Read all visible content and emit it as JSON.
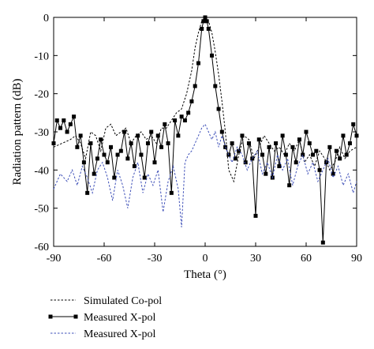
{
  "chart_data": {
    "type": "line",
    "title": "",
    "xlabel": "Theta (°)",
    "ylabel": "Radiation pattern (dB)",
    "xlim": [
      -90,
      90
    ],
    "ylim": [
      -60,
      0
    ],
    "xticks": [
      -90,
      -60,
      -30,
      0,
      30,
      60,
      90
    ],
    "yticks": [
      -60,
      -50,
      -40,
      -30,
      -20,
      -10,
      0
    ],
    "xtick_labels": [
      "-90",
      "-60",
      "-30",
      "0",
      "30",
      "60",
      "90"
    ],
    "ytick_labels": [
      "-60",
      "-50",
      "-40",
      "-30",
      "-20",
      "-10",
      "0"
    ],
    "grid": false,
    "legend_position": "bottom-left, below plot",
    "series": [
      {
        "name": "Simulated Co-pol",
        "style": "dotted",
        "color": "#000000",
        "x": [
          -90,
          -85,
          -80,
          -77,
          -74,
          -71,
          -68,
          -65,
          -62,
          -59,
          -56,
          -53,
          -50,
          -47,
          -44,
          -41,
          -38,
          -35,
          -32,
          -29,
          -26,
          -23,
          -20,
          -17,
          -14,
          -11,
          -8,
          -6,
          -4,
          -2,
          0,
          2,
          4,
          6,
          8,
          10,
          12,
          14,
          17,
          20,
          23,
          26,
          29,
          32,
          35,
          38,
          41,
          44,
          47,
          50,
          53,
          56,
          59,
          62,
          65,
          68,
          71,
          74,
          77,
          80,
          83,
          86,
          90
        ],
        "y": [
          -34,
          -33,
          -32,
          -31,
          -33,
          -37,
          -30,
          -31,
          -35,
          -29,
          -28,
          -31,
          -30,
          -29,
          -33,
          -31,
          -30,
          -32,
          -31,
          -33,
          -29,
          -29,
          -27,
          -25,
          -24,
          -20,
          -14,
          -8,
          -4,
          -1,
          0,
          -1,
          -4,
          -9,
          -15,
          -22,
          -30,
          -40,
          -43,
          -36,
          -31,
          -32,
          -37,
          -34,
          -31,
          -33,
          -35,
          -34,
          -36,
          -33,
          -35,
          -32,
          -38,
          -36,
          -39,
          -35,
          -37,
          -40,
          -38,
          -34,
          -37,
          -35,
          -34
        ]
      },
      {
        "name": "Measured X-pol",
        "style": "solid-square-markers",
        "color": "#000000",
        "x": [
          -90,
          -88,
          -86,
          -84,
          -82,
          -80,
          -78,
          -76,
          -74,
          -72,
          -70,
          -68,
          -66,
          -64,
          -62,
          -60,
          -58,
          -56,
          -54,
          -52,
          -50,
          -48,
          -46,
          -44,
          -42,
          -40,
          -38,
          -36,
          -34,
          -32,
          -30,
          -28,
          -26,
          -24,
          -22,
          -20,
          -18,
          -16,
          -14,
          -12,
          -10,
          -8,
          -6,
          -4,
          -2,
          -1,
          0,
          1,
          2,
          4,
          6,
          8,
          10,
          12,
          14,
          16,
          18,
          20,
          22,
          24,
          26,
          28,
          30,
          32,
          34,
          36,
          38,
          40,
          42,
          44,
          46,
          48,
          50,
          52,
          54,
          56,
          58,
          60,
          62,
          64,
          66,
          68,
          70,
          72,
          74,
          76,
          78,
          80,
          82,
          84,
          86,
          88,
          90
        ],
        "y": [
          -33,
          -27,
          -29,
          -27,
          -30,
          -28,
          -26,
          -34,
          -31,
          -38,
          -46,
          -33,
          -41,
          -37,
          -32,
          -36,
          -38,
          -34,
          -42,
          -36,
          -35,
          -30,
          -37,
          -33,
          -39,
          -31,
          -36,
          -42,
          -33,
          -30,
          -38,
          -31,
          -34,
          -28,
          -33,
          -46,
          -27,
          -31,
          -26,
          -27,
          -25,
          -22,
          -18,
          -12,
          -3,
          -1,
          0,
          -1,
          -3,
          -10,
          -18,
          -24,
          -30,
          -34,
          -36,
          -33,
          -37,
          -35,
          -31,
          -38,
          -33,
          -37,
          -52,
          -32,
          -36,
          -41,
          -34,
          -42,
          -33,
          -39,
          -31,
          -36,
          -44,
          -34,
          -38,
          -32,
          -36,
          -30,
          -33,
          -36,
          -35,
          -40,
          -59,
          -38,
          -34,
          -41,
          -35,
          -37,
          -31,
          -36,
          -33,
          -28,
          -31
        ]
      },
      {
        "name": "Measured X-pol",
        "style": "dotted",
        "color": "#3d4fb8",
        "x": [
          -90,
          -86,
          -82,
          -79,
          -76,
          -73,
          -70,
          -67,
          -64,
          -61,
          -58,
          -55,
          -52,
          -49,
          -46,
          -43,
          -40,
          -37,
          -34,
          -31,
          -28,
          -25,
          -22,
          -19,
          -16,
          -14,
          -12,
          -10,
          -8,
          -6,
          -4,
          -2,
          0,
          2,
          4,
          6,
          8,
          10,
          13,
          16,
          19,
          22,
          25,
          28,
          31,
          34,
          37,
          40,
          43,
          46,
          49,
          52,
          55,
          58,
          61,
          64,
          67,
          70,
          73,
          76,
          79,
          82,
          85,
          88,
          90
        ],
        "y": [
          -45,
          -41,
          -43,
          -40,
          -44,
          -39,
          -42,
          -46,
          -40,
          -38,
          -42,
          -48,
          -40,
          -44,
          -50,
          -42,
          -38,
          -46,
          -41,
          -44,
          -40,
          -51,
          -43,
          -39,
          -45,
          -55,
          -38,
          -36,
          -35,
          -33,
          -31,
          -29,
          -28,
          -30,
          -32,
          -30,
          -34,
          -31,
          -35,
          -38,
          -34,
          -36,
          -40,
          -37,
          -35,
          -41,
          -38,
          -42,
          -36,
          -40,
          -37,
          -44,
          -39,
          -36,
          -41,
          -38,
          -43,
          -40,
          -37,
          -42,
          -39,
          -44,
          -41,
          -46,
          -43
        ]
      }
    ]
  }
}
